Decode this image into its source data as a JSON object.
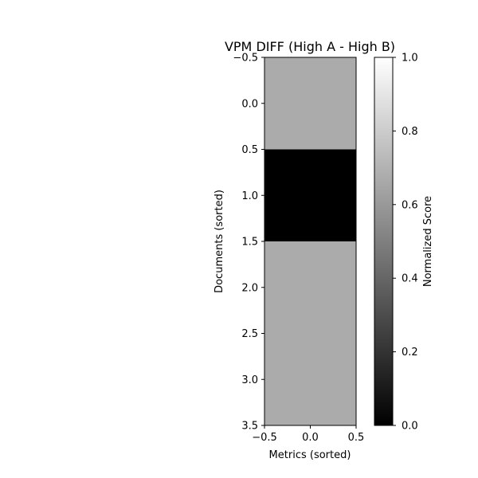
{
  "chart_data": {
    "type": "heatmap",
    "title": "VPM DIFF (High A - High B)",
    "xlabel": "Metrics (sorted)",
    "ylabel": "Documents (sorted)",
    "xlim": [
      -0.5,
      0.5
    ],
    "ylim": [
      3.5,
      -0.5
    ],
    "x_ticks": [
      "−0.5",
      "0.0",
      "0.5"
    ],
    "y_ticks": [
      "−0.5",
      "0.0",
      "0.5",
      "1.0",
      "1.5",
      "2.0",
      "2.5",
      "3.0",
      "3.5"
    ],
    "rows": [
      {
        "y": 0,
        "values": [
          0.67
        ]
      },
      {
        "y": 1,
        "values": [
          0.0
        ]
      },
      {
        "y": 2,
        "values": [
          0.67
        ]
      },
      {
        "y": 3,
        "values": [
          0.67
        ]
      }
    ],
    "colorbar": {
      "label": "Normalized Score",
      "range": [
        0.0,
        1.0
      ],
      "ticks": [
        "0.0",
        "0.2",
        "0.4",
        "0.6",
        "0.8",
        "1.0"
      ],
      "colormap": "gray"
    }
  }
}
